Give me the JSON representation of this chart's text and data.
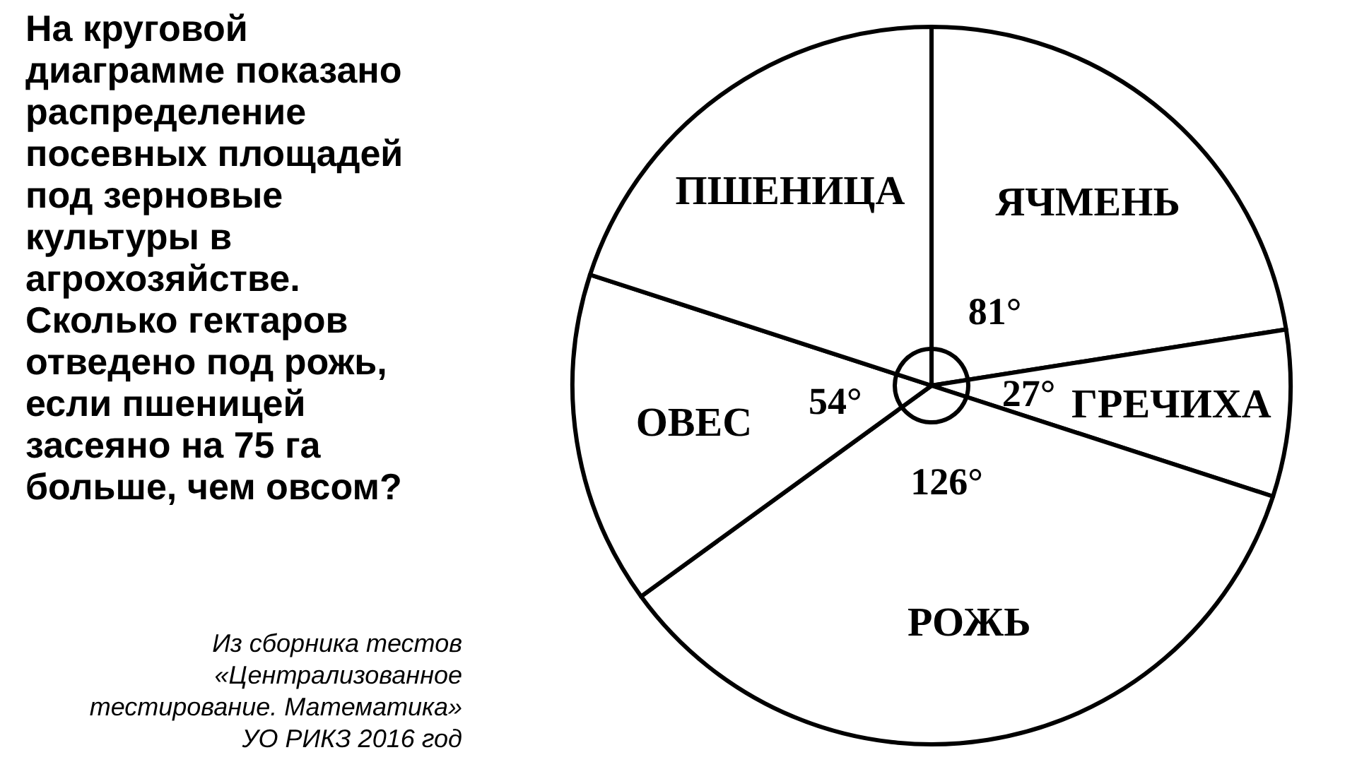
{
  "chart_data": {
    "type": "pie",
    "title": "На круговой диаграмме показано распределение посевных площадей под зерновые культуры в агрохозяйстве. Сколько гектаров отведено под рожь, если пшеницей засеяно на 75 га больше, чем овсом?",
    "categories": [
      "ЯЧМЕНЬ",
      "ГРЕЧИХА",
      "РОЖЬ",
      "ОВЕС",
      "ПШЕНИЦА"
    ],
    "values": [
      81,
      27,
      126,
      54,
      72
    ],
    "value_labels": [
      "81°",
      "27°",
      "126°",
      "54°",
      null
    ],
    "colors": [
      "#ffffff",
      "#ffffff",
      "#ffffff",
      "#ffffff",
      "#ffffff"
    ],
    "annotations": [
      "Из сборника тестов «Централизованное тестирование. Математика» УО РИКЗ 2016 год"
    ]
  }
}
